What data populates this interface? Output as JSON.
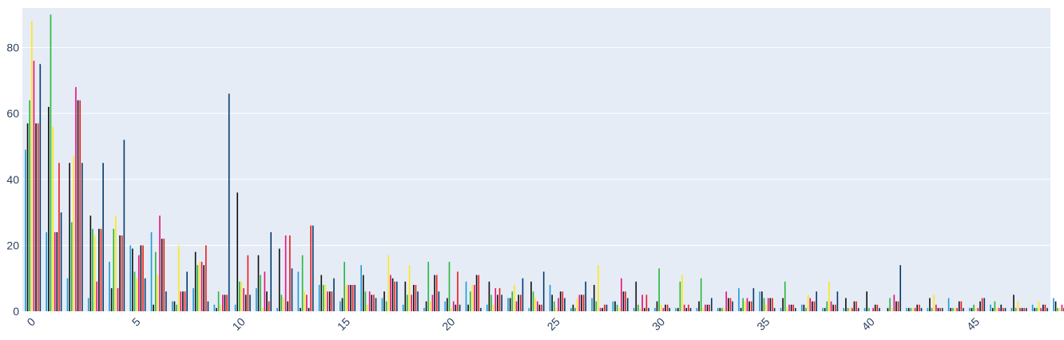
{
  "chart_data": {
    "type": "bar",
    "title": "",
    "xlabel": "",
    "ylabel": "",
    "xlim": [
      -0.5,
      48.5
    ],
    "ylim": [
      0,
      92
    ],
    "grid": true,
    "legend": "none",
    "x_ticks": [
      0,
      5,
      10,
      15,
      20,
      25,
      30,
      35,
      40,
      45
    ],
    "y_ticks": [
      0,
      20,
      40,
      60,
      80
    ],
    "colors": {
      "plot_background": "#e5ecf6",
      "gridline": "#ffffff",
      "tick_text": "#2a3f5f"
    },
    "series": [
      {
        "color": "#1f9bd7",
        "values": [
          49,
          24,
          10,
          4,
          15,
          20,
          24,
          3,
          7,
          2,
          2,
          7,
          1,
          12,
          8,
          3,
          14,
          4,
          2,
          1,
          3,
          9,
          2,
          4,
          1,
          8,
          1,
          4,
          3,
          1,
          1,
          1,
          1,
          1,
          7,
          6,
          1,
          2,
          1,
          1,
          1,
          0,
          1,
          1,
          4,
          1,
          2,
          1,
          2,
          4
        ]
      },
      {
        "color": "#111111",
        "values": [
          57,
          62,
          45,
          29,
          7,
          19,
          2,
          3,
          18,
          1,
          36,
          17,
          19,
          1,
          11,
          4,
          11,
          6,
          9,
          3,
          4,
          2,
          9,
          4,
          9,
          5,
          2,
          8,
          3,
          9,
          3,
          1,
          3,
          1,
          1,
          6,
          4,
          2,
          1,
          4,
          6,
          1,
          1,
          4,
          1,
          1,
          1,
          5,
          1,
          3
        ]
      },
      {
        "color": "#2ab73b",
        "values": [
          64,
          90,
          27,
          25,
          25,
          12,
          18,
          2,
          14,
          6,
          9,
          11,
          5,
          17,
          8,
          15,
          6,
          3,
          5,
          15,
          15,
          6,
          5,
          6,
          6,
          3,
          1,
          3,
          2,
          2,
          13,
          9,
          10,
          1,
          4,
          4,
          9,
          1,
          3,
          1,
          1,
          4,
          1,
          1,
          1,
          2,
          3,
          1,
          1,
          1
        ]
      },
      {
        "color": "#ffe816",
        "values": [
          88,
          56,
          47,
          23,
          29,
          10,
          11,
          20,
          15,
          2,
          9,
          1,
          4,
          6,
          8,
          8,
          2,
          17,
          14,
          3,
          1,
          8,
          2,
          8,
          4,
          1,
          4,
          14,
          1,
          1,
          2,
          11,
          1,
          1,
          3,
          2,
          1,
          5,
          9,
          1,
          0,
          1,
          1,
          5,
          1,
          1,
          1,
          3,
          3,
          1
        ]
      },
      {
        "color": "#e8107e",
        "values": [
          76,
          24,
          68,
          9,
          7,
          17,
          29,
          6,
          15,
          5,
          7,
          12,
          23,
          5,
          6,
          8,
          6,
          11,
          5,
          5,
          3,
          8,
          7,
          3,
          3,
          4,
          5,
          1,
          10,
          5,
          1,
          2,
          2,
          6,
          4,
          4,
          2,
          4,
          3,
          1,
          1,
          5,
          1,
          2,
          1,
          1,
          1,
          1,
          1,
          2
        ]
      },
      {
        "color": "#111111",
        "values": [
          57,
          24,
          64,
          25,
          23,
          20,
          22,
          6,
          14,
          5,
          5,
          6,
          3,
          1,
          6,
          8,
          5,
          10,
          8,
          11,
          2,
          11,
          5,
          5,
          2,
          6,
          5,
          1,
          6,
          1,
          2,
          1,
          2,
          4,
          3,
          4,
          2,
          3,
          2,
          3,
          2,
          3,
          2,
          1,
          3,
          3,
          2,
          1,
          2,
          1
        ]
      },
      {
        "color": "#ee1c1c",
        "values": [
          57,
          45,
          64,
          25,
          23,
          20,
          22,
          6,
          20,
          5,
          17,
          3,
          23,
          26,
          6,
          8,
          5,
          9,
          8,
          11,
          12,
          11,
          7,
          5,
          2,
          6,
          5,
          2,
          6,
          5,
          2,
          2,
          2,
          4,
          3,
          4,
          2,
          3,
          2,
          3,
          2,
          3,
          2,
          1,
          3,
          4,
          1,
          1,
          2,
          1
        ]
      },
      {
        "color": "#063c6c",
        "values": [
          75,
          30,
          45,
          45,
          52,
          10,
          6,
          12,
          3,
          66,
          5,
          24,
          13,
          26,
          10,
          8,
          4,
          9,
          6,
          6,
          2,
          1,
          5,
          10,
          12,
          4,
          9,
          2,
          4,
          1,
          1,
          1,
          4,
          3,
          7,
          1,
          1,
          6,
          6,
          1,
          1,
          14,
          1,
          1,
          1,
          4,
          1,
          1,
          1,
          2
        ]
      }
    ]
  }
}
